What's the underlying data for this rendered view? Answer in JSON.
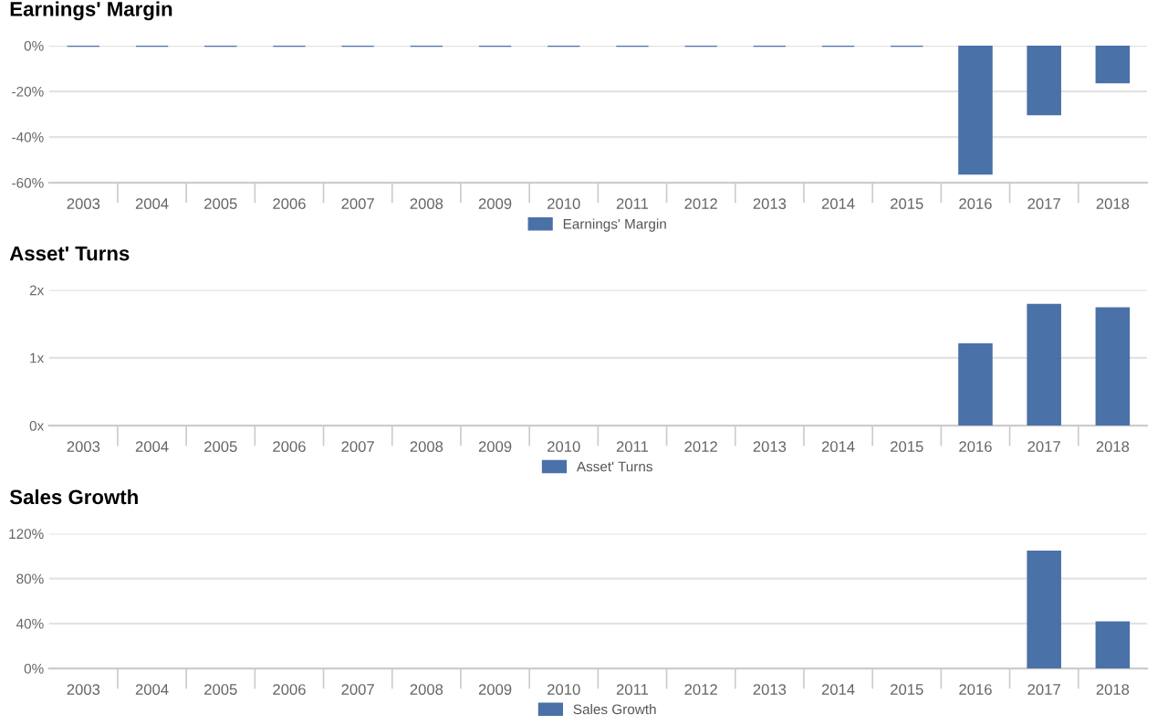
{
  "chart_data": [
    {
      "type": "bar",
      "title": "Earnings' Margin",
      "categories": [
        "2003",
        "2004",
        "2005",
        "2006",
        "2007",
        "2008",
        "2009",
        "2010",
        "2011",
        "2012",
        "2013",
        "2014",
        "2015",
        "2016",
        "2017",
        "2018"
      ],
      "series": [
        {
          "name": "Earnings' Margin",
          "color": "#4a71a8",
          "values": [
            0,
            0,
            0,
            0,
            0,
            0,
            0,
            0,
            0,
            0,
            0,
            0,
            0,
            -56,
            -30,
            -16
          ]
        }
      ],
      "ylim": [
        -60,
        0
      ],
      "yticks": [
        {
          "value": 0,
          "label": "0%"
        },
        {
          "value": -20,
          "label": "-20%"
        },
        {
          "value": -40,
          "label": "-40%"
        },
        {
          "value": -60,
          "label": "-60%"
        }
      ],
      "grid": "y",
      "legend": "bottom"
    },
    {
      "type": "bar",
      "title": "Asset' Turns",
      "categories": [
        "2003",
        "2004",
        "2005",
        "2006",
        "2007",
        "2008",
        "2009",
        "2010",
        "2011",
        "2012",
        "2013",
        "2014",
        "2015",
        "2016",
        "2017",
        "2018"
      ],
      "series": [
        {
          "name": "Asset' Turns",
          "color": "#4a71a8",
          "values": [
            null,
            null,
            null,
            null,
            null,
            null,
            null,
            null,
            null,
            null,
            null,
            null,
            null,
            1.2,
            1.78,
            1.73
          ]
        }
      ],
      "ylim": [
        0,
        2
      ],
      "yticks": [
        {
          "value": 0,
          "label": "0x"
        },
        {
          "value": 1,
          "label": "1x"
        },
        {
          "value": 2,
          "label": "2x"
        }
      ],
      "grid": "y",
      "legend": "bottom"
    },
    {
      "type": "bar",
      "title": "Sales Growth",
      "categories": [
        "2003",
        "2004",
        "2005",
        "2006",
        "2007",
        "2008",
        "2009",
        "2010",
        "2011",
        "2012",
        "2013",
        "2014",
        "2015",
        "2016",
        "2017",
        "2018"
      ],
      "series": [
        {
          "name": "Sales Growth",
          "color": "#4a71a8",
          "values": [
            null,
            null,
            null,
            null,
            null,
            null,
            null,
            null,
            null,
            null,
            null,
            null,
            null,
            null,
            104,
            41
          ]
        }
      ],
      "ylim": [
        0,
        120
      ],
      "yticks": [
        {
          "value": 0,
          "label": "0%"
        },
        {
          "value": 40,
          "label": "40%"
        },
        {
          "value": 80,
          "label": "80%"
        },
        {
          "value": 120,
          "label": "120%"
        }
      ],
      "grid": "y",
      "legend": "bottom"
    }
  ]
}
